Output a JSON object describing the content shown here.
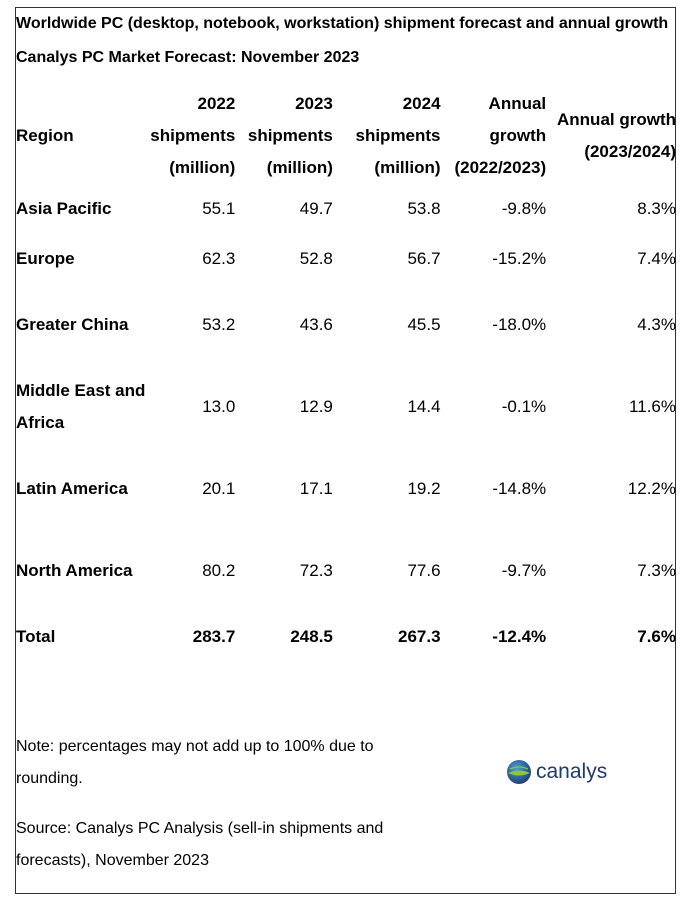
{
  "title": "Worldwide PC (desktop, notebook, workstation) shipment forecast and annual growth",
  "subtitle": "Canalys PC Market Forecast: November 2023",
  "table": {
    "headers": {
      "region": "Region",
      "y2022": [
        "2022",
        "shipments",
        "(million)"
      ],
      "y2023": [
        "2023",
        "shipments",
        "(million)"
      ],
      "y2024": [
        "2024",
        "shipments",
        "(million)"
      ],
      "growth1": [
        "Annual",
        "growth",
        "(2022/2023)"
      ],
      "growth2": [
        "Annual growth",
        "(2023/2024)"
      ]
    },
    "rows": [
      {
        "region": "Asia Pacific",
        "y2022": "55.1",
        "y2023": "49.7",
        "y2024": "53.8",
        "growth1": "-9.8%",
        "growth2": "8.3%"
      },
      {
        "region": "Europe",
        "y2022": "62.3",
        "y2023": "52.8",
        "y2024": "56.7",
        "growth1": "-15.2%",
        "growth2": "7.4%"
      },
      {
        "region": "Greater China",
        "y2022": "53.2",
        "y2023": "43.6",
        "y2024": "45.5",
        "growth1": "-18.0%",
        "growth2": "4.3%"
      },
      {
        "region": "Middle East and Africa",
        "y2022": "13.0",
        "y2023": "12.9",
        "y2024": "14.4",
        "growth1": "-0.1%",
        "growth2": "11.6%"
      },
      {
        "region": "Latin America",
        "y2022": "20.1",
        "y2023": "17.1",
        "y2024": "19.2",
        "growth1": "-14.8%",
        "growth2": "12.2%"
      },
      {
        "region": "North America",
        "y2022": "80.2",
        "y2023": "72.3",
        "y2024": "77.6",
        "growth1": "-9.7%",
        "growth2": "7.3%"
      }
    ],
    "total": {
      "region": "Total",
      "y2022": "283.7",
      "y2023": "248.5",
      "y2024": "267.3",
      "growth1": "-12.4%",
      "growth2": "7.6%"
    }
  },
  "note": "Note: percentages may not add up to 100% due to rounding.",
  "source": "Source: Canalys PC Analysis (sell-in shipments and forecasts), November 2023",
  "logo": {
    "text": "canalys",
    "text_color": "#1e3a6e",
    "globe_colors": [
      "#1e3a6e",
      "#4a9fd8",
      "#8cc63f"
    ]
  }
}
